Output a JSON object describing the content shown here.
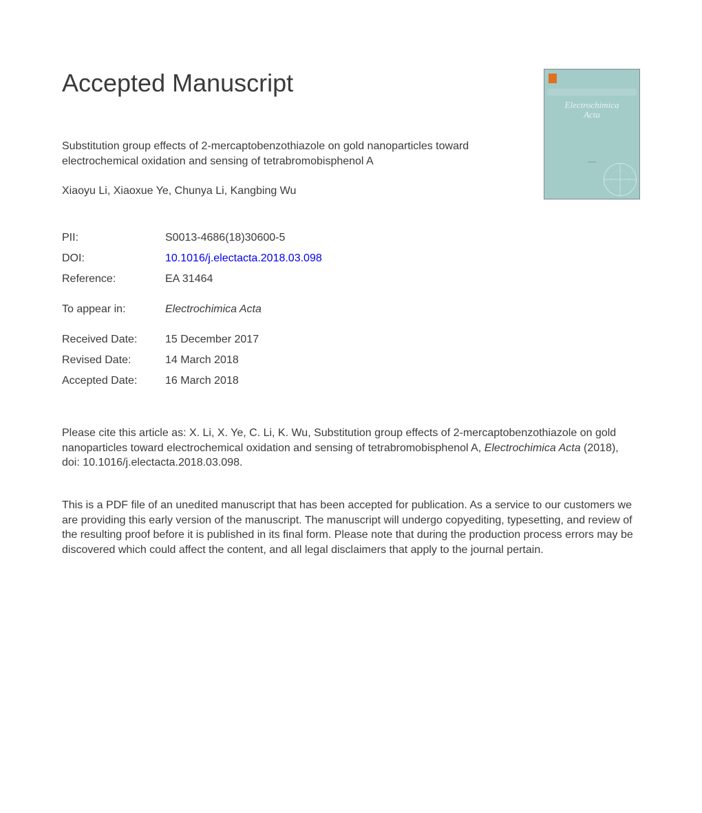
{
  "heading": "Accepted Manuscript",
  "cover": {
    "journal_line1": "Electrochimica",
    "journal_line2": "Acta"
  },
  "article": {
    "title": "Substitution group effects of 2-mercaptobenzothiazole on gold nanoparticles toward electrochemical oxidation and sensing of tetrabromobisphenol A",
    "authors": "Xiaoyu Li, Xiaoxue Ye, Chunya Li, Kangbing Wu"
  },
  "meta": {
    "pii_label": "PII:",
    "pii_value": "S0013-4686(18)30600-5",
    "doi_label": "DOI:",
    "doi_value": "10.1016/j.electacta.2018.03.098",
    "ref_label": "Reference:",
    "ref_value": "EA 31464",
    "appear_label": "To appear in:",
    "appear_value": "Electrochimica Acta",
    "received_label": "Received Date:",
    "received_value": "15 December 2017",
    "revised_label": "Revised Date:",
    "revised_value": "14 March 2018",
    "accepted_label": "Accepted Date:",
    "accepted_value": "16 March 2018"
  },
  "citation": {
    "prefix": "Please cite this article as: X. Li, X. Ye, C. Li, K. Wu, Substitution group effects of 2-mercaptobenzothiazole on gold nanoparticles toward electrochemical oxidation and sensing of tetrabromobisphenol A, ",
    "journal": "Electrochimica Acta",
    "suffix": " (2018), doi: 10.1016/j.electacta.2018.03.098."
  },
  "disclaimer": "This is a PDF file of an unedited manuscript that has been accepted for publication. As a service to our customers we are providing this early version of the manuscript. The manuscript will undergo copyediting, typesetting, and review of the resulting proof before it is published in its final form. Please note that during the production process errors may be discovered which could affect the content, and all legal disclaimers that apply to the journal pertain.",
  "colors": {
    "text": "#3a3a3a",
    "link": "#0000ee",
    "cover_bg": "#a3ccc9",
    "cover_text": "#e8f2f0"
  },
  "typography": {
    "heading_fontsize": 36,
    "body_fontsize": 16,
    "font_family": "Arial"
  }
}
